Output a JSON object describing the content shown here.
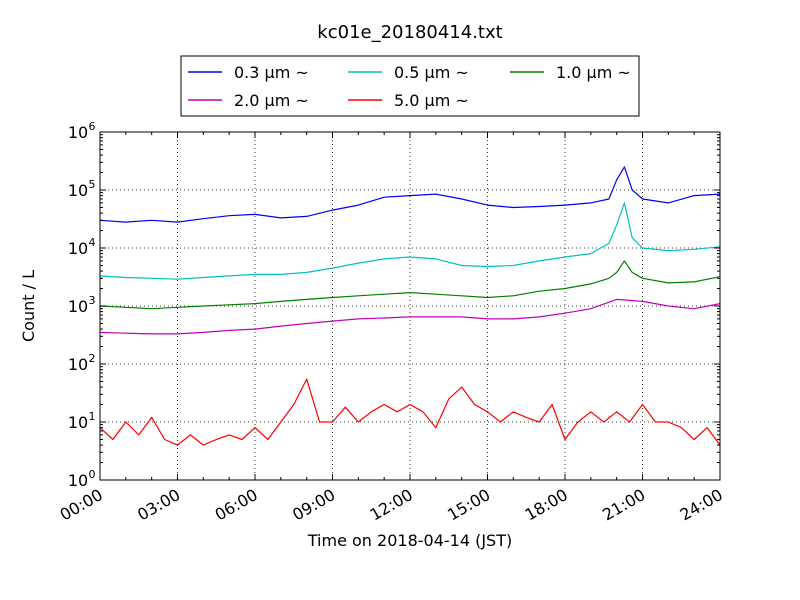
{
  "chart_data": {
    "type": "line",
    "title": "kc01e_20180414.txt",
    "xlabel": "Time on 2018-04-14 (JST)",
    "ylabel": "Count / L",
    "y_scale": "log",
    "ylim": [
      1,
      1000000
    ],
    "xlim_hours": [
      0,
      24
    ],
    "grid": true,
    "legend_position": "top-center",
    "x_tick_labels": [
      "00:00",
      "03:00",
      "06:00",
      "09:00",
      "12:00",
      "15:00",
      "18:00",
      "21:00",
      "24:00"
    ],
    "y_ticks": [
      {
        "value": 1,
        "base": "10",
        "exp": "0"
      },
      {
        "value": 10,
        "base": "10",
        "exp": "1"
      },
      {
        "value": 100,
        "base": "10",
        "exp": "2"
      },
      {
        "value": 1000,
        "base": "10",
        "exp": "3"
      },
      {
        "value": 10000,
        "base": "10",
        "exp": "4"
      },
      {
        "value": 100000,
        "base": "10",
        "exp": "5"
      },
      {
        "value": 1000000,
        "base": "10",
        "exp": "6"
      }
    ],
    "series": [
      {
        "name": "0.3 μm ~",
        "color": "#0000ff",
        "x_hours": [
          0,
          1,
          2,
          3,
          4,
          5,
          6,
          7,
          8,
          9,
          10,
          11,
          12,
          13,
          14,
          15,
          16,
          17,
          18,
          19,
          19.7,
          20,
          20.3,
          20.6,
          21,
          22,
          23,
          24
        ],
        "values": [
          30000,
          28000,
          30000,
          28000,
          32000,
          36000,
          38000,
          33000,
          35000,
          45000,
          55000,
          75000,
          80000,
          85000,
          70000,
          55000,
          50000,
          52000,
          55000,
          60000,
          70000,
          150000,
          250000,
          100000,
          70000,
          60000,
          80000,
          85000
        ]
      },
      {
        "name": "0.5 μm ~",
        "color": "#00bfbf",
        "x_hours": [
          0,
          1,
          2,
          3,
          4,
          5,
          6,
          7,
          8,
          9,
          10,
          11,
          12,
          13,
          14,
          15,
          16,
          17,
          18,
          19,
          19.7,
          20,
          20.3,
          20.6,
          21,
          22,
          23,
          24
        ],
        "values": [
          3300,
          3100,
          3000,
          2900,
          3100,
          3300,
          3500,
          3500,
          3800,
          4500,
          5500,
          6500,
          7000,
          6500,
          5000,
          4800,
          5000,
          6000,
          7000,
          8000,
          12000,
          25000,
          60000,
          15000,
          10000,
          9000,
          9500,
          10500
        ]
      },
      {
        "name": "1.0 μm ~",
        "color": "#008000",
        "x_hours": [
          0,
          1,
          2,
          3,
          4,
          5,
          6,
          7,
          8,
          9,
          10,
          11,
          12,
          13,
          14,
          15,
          16,
          17,
          18,
          19,
          19.7,
          20,
          20.3,
          20.6,
          21,
          22,
          23,
          24
        ],
        "values": [
          1000,
          950,
          900,
          950,
          1000,
          1050,
          1100,
          1200,
          1300,
          1400,
          1500,
          1600,
          1700,
          1600,
          1500,
          1400,
          1500,
          1800,
          2000,
          2400,
          3000,
          3800,
          6000,
          3800,
          3000,
          2500,
          2600,
          3200
        ]
      },
      {
        "name": "2.0 μm ~",
        "color": "#bf00bf",
        "x_hours": [
          0,
          1,
          2,
          3,
          4,
          5,
          6,
          7,
          8,
          9,
          10,
          11,
          12,
          13,
          14,
          15,
          16,
          17,
          18,
          19,
          20,
          21,
          22,
          23,
          24
        ],
        "values": [
          350,
          340,
          330,
          330,
          350,
          380,
          400,
          450,
          500,
          550,
          600,
          620,
          650,
          650,
          650,
          600,
          600,
          650,
          750,
          900,
          1300,
          1200,
          1000,
          900,
          1100
        ]
      },
      {
        "name": "5.0 μm ~",
        "color": "#ff0000",
        "x_hours": [
          0,
          0.5,
          1,
          1.5,
          2,
          2.5,
          3,
          3.5,
          4,
          4.5,
          5,
          5.5,
          6,
          6.5,
          7,
          7.5,
          8,
          8.5,
          9,
          9.5,
          10,
          10.5,
          11,
          11.5,
          12,
          12.5,
          13,
          13.5,
          14,
          14.5,
          15,
          15.5,
          16,
          16.5,
          17,
          17.5,
          18,
          18.5,
          19,
          19.5,
          20,
          20.5,
          21,
          21.5,
          22,
          22.5,
          23,
          23.5,
          24
        ],
        "values": [
          8,
          5,
          10,
          6,
          12,
          5,
          4,
          6,
          4,
          5,
          6,
          5,
          8,
          5,
          10,
          20,
          55,
          10,
          10,
          18,
          10,
          15,
          20,
          15,
          20,
          15,
          8,
          25,
          40,
          20,
          15,
          10,
          15,
          12,
          10,
          20,
          5,
          10,
          15,
          10,
          15,
          10,
          20,
          10,
          10,
          8,
          5,
          8,
          4
        ]
      }
    ]
  }
}
